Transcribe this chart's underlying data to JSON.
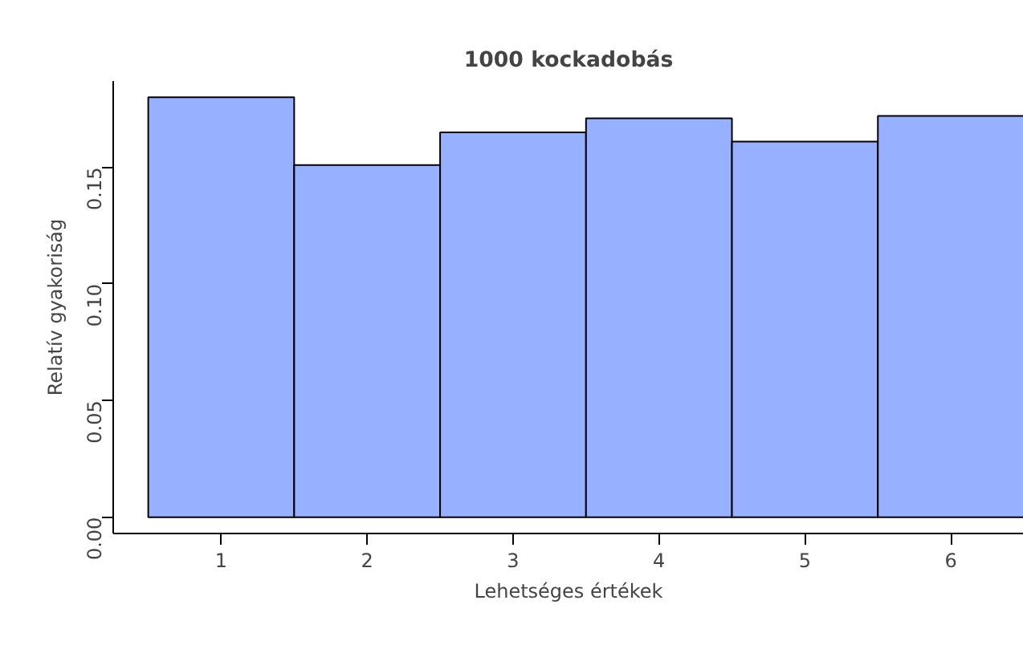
{
  "chart_data": {
    "type": "histogram",
    "title": "1000 kockadobás",
    "xlabel": "Lehetséges értékek",
    "ylabel": "Relatív gyakoriság",
    "bins": [
      0.5,
      1.5,
      2.5,
      3.5,
      4.5,
      5.5,
      6.5
    ],
    "values": [
      0.18,
      0.151,
      0.165,
      0.171,
      0.161,
      0.172
    ],
    "color": "#97b0ff",
    "xlim": [
      0.26,
      6.5
    ],
    "ylim": [
      -0.007,
      0.187
    ],
    "xticks": [
      1,
      2,
      3,
      4,
      5,
      6
    ],
    "yticks": [
      {
        "value": 0,
        "label": "0.00"
      },
      {
        "value": 0.05,
        "label": "0.05"
      },
      {
        "value": 0.1,
        "label": "0.10"
      },
      {
        "value": 0.15,
        "label": "0.15"
      }
    ],
    "grid": false
  }
}
